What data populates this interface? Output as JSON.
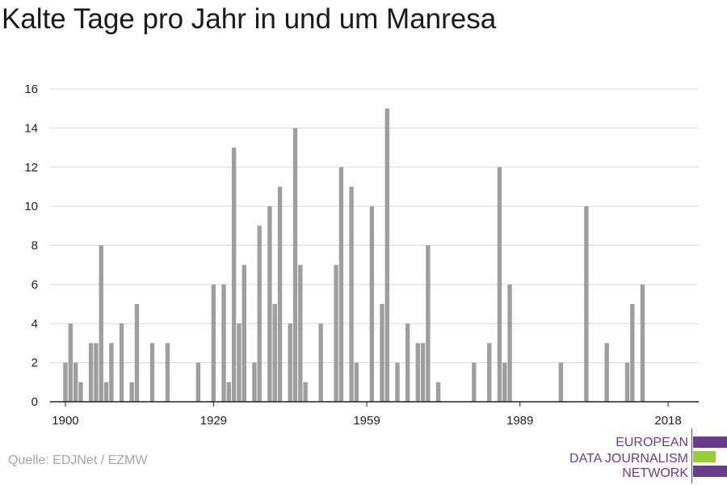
{
  "title": "Kalte Tage pro Jahr in und um Manresa",
  "source": "Quelle: EDJNet / EZMW",
  "logo": {
    "lines": [
      "EUROPEAN",
      "DATA JOURNALISM",
      "NETWORK"
    ],
    "colors": {
      "text": "#6a3d8c",
      "purple": "#6a3d8c",
      "green": "#9acd32"
    }
  },
  "colors": {
    "bar": "#9e9e9e",
    "grid": "#d9d9d9",
    "axis": "#222222"
  },
  "chart_data": {
    "type": "bar",
    "title": "Kalte Tage pro Jahr in und um Manresa",
    "xlabel": "",
    "ylabel": "",
    "xlim": [
      1897,
      2024
    ],
    "ylim": [
      0,
      16
    ],
    "yticks": [
      0,
      2,
      4,
      6,
      8,
      10,
      12,
      14,
      16
    ],
    "xticks": [
      1900,
      1929,
      1959,
      1989,
      2018
    ],
    "grid": true,
    "legend": "none",
    "x": [
      1900,
      1901,
      1902,
      1903,
      1905,
      1906,
      1907,
      1908,
      1909,
      1911,
      1913,
      1914,
      1917,
      1920,
      1926,
      1929,
      1931,
      1932,
      1933,
      1934,
      1935,
      1937,
      1938,
      1940,
      1941,
      1942,
      1944,
      1945,
      1946,
      1947,
      1950,
      1953,
      1954,
      1956,
      1957,
      1960,
      1962,
      1963,
      1965,
      1967,
      1969,
      1970,
      1971,
      1973,
      1980,
      1983,
      1985,
      1986,
      1987,
      1997,
      2002,
      2006,
      2010,
      2011,
      2013
    ],
    "values": [
      2,
      4,
      2,
      1,
      3,
      3,
      8,
      1,
      3,
      4,
      1,
      5,
      3,
      3,
      2,
      6,
      6,
      1,
      13,
      4,
      7,
      2,
      9,
      10,
      5,
      11,
      4,
      14,
      7,
      1,
      4,
      7,
      12,
      11,
      2,
      10,
      5,
      15,
      2,
      4,
      3,
      3,
      8,
      1,
      2,
      3,
      12,
      2,
      6,
      2,
      10,
      3,
      2,
      5,
      6
    ]
  }
}
